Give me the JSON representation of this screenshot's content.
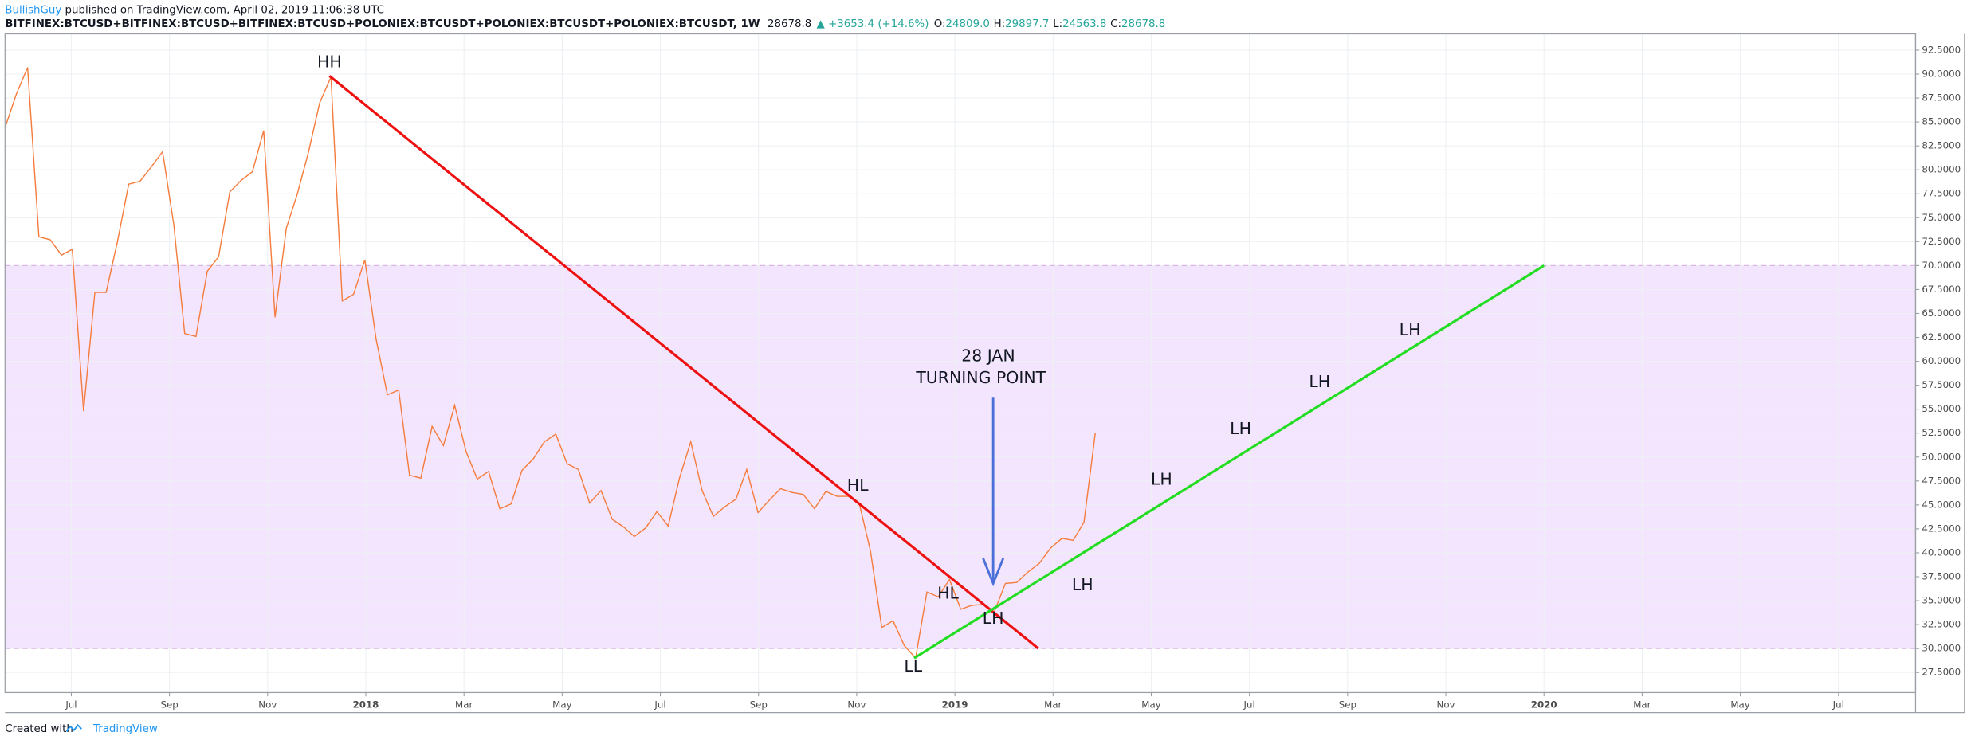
{
  "header": {
    "author": "BullishGuy",
    "published": " published on TradingView.com, April 02, 2019 11:06:38 UTC",
    "symbol": "BITFINEX:BTCUSD+BITFINEX:BTCUSD+BITFINEX:BTCUSD+POLONIEX:BTCUSDT+POLONIEX:BTCUSDT+POLONIEX:BTCUSDT, 1W",
    "last": "28678.8",
    "change": "▲ +3653.4 (+14.6%)",
    "o_label": "O:",
    "o": "24809.0",
    "h_label": "H:",
    "h": "29897.7",
    "l_label": "L:",
    "l": "24563.8",
    "c_label": "C:",
    "c": "28678.8"
  },
  "footer": {
    "created": "Created with",
    "brand": "TradingView"
  },
  "chart_data": {
    "type": "line",
    "color": "#f57c3d",
    "grid": true,
    "x": [
      4.65,
      4.88,
      5.11,
      5.34,
      5.57,
      5.8,
      6.02,
      6.25,
      6.48,
      6.71,
      6.94,
      7.17,
      7.4,
      7.63,
      7.86,
      8.09,
      8.31,
      8.54,
      8.77,
      9.0,
      9.23,
      9.46,
      9.69,
      9.92,
      10.15,
      10.38,
      10.6,
      10.83,
      11.06,
      11.29,
      11.52,
      11.75,
      11.98,
      12.21,
      12.44,
      12.67,
      12.89,
      13.12,
      13.35,
      13.58,
      13.81,
      14.04,
      14.27,
      14.5,
      14.73,
      14.96,
      15.18,
      15.41,
      15.64,
      15.87,
      16.1,
      16.33,
      16.56,
      16.79,
      17.02,
      17.25,
      17.47,
      17.7,
      17.93,
      18.16,
      18.39,
      18.62,
      18.85,
      19.08,
      19.31,
      19.54,
      19.76,
      19.99,
      20.22,
      20.45,
      20.68,
      20.91,
      21.14,
      21.37,
      21.6,
      21.83,
      22.05,
      22.28,
      22.51,
      22.74,
      22.97,
      23.2,
      23.43,
      23.66,
      23.89,
      24.12,
      24.34,
      24.57,
      24.8,
      25.03,
      25.26,
      25.49,
      25.72,
      25.95,
      26.18,
      26.41,
      26.63,
      26.86
    ],
    "values": [
      84.4,
      87.9,
      90.7,
      73.0,
      72.7,
      71.1,
      71.7,
      54.8,
      67.2,
      67.2,
      72.5,
      78.5,
      78.8,
      80.3,
      81.9,
      74.2,
      62.9,
      62.6,
      69.4,
      70.9,
      77.7,
      78.9,
      79.8,
      84.1,
      64.6,
      73.9,
      77.4,
      81.8,
      87.0,
      89.7,
      66.3,
      67.0,
      70.6,
      62.3,
      56.5,
      57.0,
      48.1,
      47.8,
      53.2,
      51.2,
      55.4,
      50.6,
      47.7,
      48.5,
      44.6,
      45.1,
      48.6,
      49.8,
      51.6,
      52.4,
      49.3,
      48.7,
      45.2,
      46.5,
      43.5,
      42.7,
      41.7,
      42.6,
      44.3,
      42.8,
      47.8,
      51.6,
      46.5,
      43.8,
      44.8,
      45.6,
      48.7,
      44.2,
      45.5,
      46.7,
      46.3,
      46.1,
      44.6,
      46.4,
      45.9,
      45.9,
      45.2,
      40.2,
      32.2,
      32.9,
      30.3,
      29.0,
      35.9,
      35.4,
      37.2,
      34.1,
      34.5,
      34.6,
      33.8,
      36.8,
      36.9,
      38.0,
      38.9,
      40.5,
      41.5,
      41.3,
      43.2,
      52.5
    ],
    "xlim": [
      4.65,
      43.57
    ],
    "ylim": [
      25.4,
      94.2
    ],
    "xticks": [
      {
        "value": 6,
        "label": "Jul"
      },
      {
        "value": 8,
        "label": "Sep"
      },
      {
        "value": 10,
        "label": "Nov"
      },
      {
        "value": 12,
        "label": "2018"
      },
      {
        "value": 14,
        "label": "Mar"
      },
      {
        "value": 16,
        "label": "May"
      },
      {
        "value": 18,
        "label": "Jul"
      },
      {
        "value": 20,
        "label": "Sep"
      },
      {
        "value": 22,
        "label": "Nov"
      },
      {
        "value": 24,
        "label": "2019"
      },
      {
        "value": 26,
        "label": "Mar"
      },
      {
        "value": 28,
        "label": "May"
      },
      {
        "value": 30,
        "label": "Jul"
      },
      {
        "value": 32,
        "label": "Sep"
      },
      {
        "value": 34,
        "label": "Nov"
      },
      {
        "value": 36,
        "label": "2020"
      },
      {
        "value": 38,
        "label": "Mar"
      },
      {
        "value": 40,
        "label": "May"
      },
      {
        "value": 42,
        "label": "Jul"
      }
    ],
    "yticks": [
      {
        "value": 27.5,
        "label": "27.5000"
      },
      {
        "value": 30,
        "label": "30.0000"
      },
      {
        "value": 32.5,
        "label": "32.5000"
      },
      {
        "value": 35,
        "label": "35.0000"
      },
      {
        "value": 37.5,
        "label": "37.5000"
      },
      {
        "value": 40,
        "label": "40.0000"
      },
      {
        "value": 42.5,
        "label": "42.5000"
      },
      {
        "value": 45,
        "label": "45.0000"
      },
      {
        "value": 47.5,
        "label": "47.5000"
      },
      {
        "value": 50,
        "label": "50.0000"
      },
      {
        "value": 52.5,
        "label": "52.5000"
      },
      {
        "value": 55,
        "label": "55.0000"
      },
      {
        "value": 57.5,
        "label": "57.5000"
      },
      {
        "value": 60,
        "label": "60.0000"
      },
      {
        "value": 62.5,
        "label": "62.5000"
      },
      {
        "value": 65,
        "label": "65.0000"
      },
      {
        "value": 67.5,
        "label": "67.5000"
      },
      {
        "value": 70,
        "label": "70.0000"
      },
      {
        "value": 72.5,
        "label": "72.5000"
      },
      {
        "value": 75,
        "label": "75.0000"
      },
      {
        "value": 77.5,
        "label": "77.5000"
      },
      {
        "value": 80,
        "label": "80.0000"
      },
      {
        "value": 82.5,
        "label": "82.5000"
      },
      {
        "value": 85,
        "label": "85.0000"
      },
      {
        "value": 87.5,
        "label": "87.5000"
      },
      {
        "value": 90,
        "label": "90.0000"
      },
      {
        "value": 92.5,
        "label": "92.5000"
      }
    ],
    "zone": {
      "from": 30,
      "to": 70,
      "color": "#f3e5fd"
    },
    "trendlines": [
      {
        "x": [
          11.26,
          25.7
        ],
        "y": [
          89.8,
          30.0
        ],
        "color": "#ee1111"
      },
      {
        "x": [
          23.17,
          36.0
        ],
        "y": [
          29.0,
          70.0
        ],
        "color": "#22dd22"
      }
    ],
    "arrow": {
      "x": [
        24.78,
        24.78
      ],
      "y": [
        56.2,
        36.8
      ],
      "color": "#4a6fd8"
    },
    "annotations": [
      {
        "text": "HH",
        "x": 11.26,
        "y": 91.2
      },
      {
        "text": "HL",
        "x": 22.02,
        "y": 47.0
      },
      {
        "text": "HL",
        "x": 23.86,
        "y": 35.7
      },
      {
        "text": "LL",
        "x": 23.15,
        "y": 28.1
      },
      {
        "text": "LH",
        "x": 24.78,
        "y": 33.1
      },
      {
        "text": "LH",
        "x": 26.6,
        "y": 36.6
      },
      {
        "text": "LH",
        "x": 28.21,
        "y": 47.6
      },
      {
        "text": "LH",
        "x": 29.82,
        "y": 52.9
      },
      {
        "text": "LH",
        "x": 31.43,
        "y": 57.8
      },
      {
        "text": "LH",
        "x": 33.27,
        "y": 63.2
      },
      {
        "text": "28 JAN",
        "x": 24.68,
        "y": 60.5
      },
      {
        "text": "TURNING POINT",
        "x": 24.53,
        "y": 58.2
      }
    ]
  }
}
